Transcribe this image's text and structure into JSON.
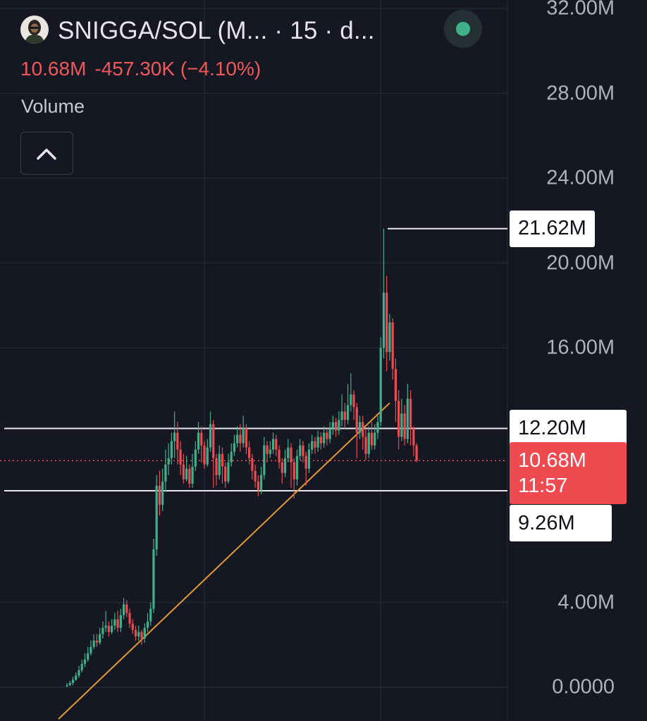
{
  "header": {
    "pair_title": "SNIGGA/SOL (M...   · 15 · d...",
    "price": "10.68M",
    "change": "-457.30K (−4.10%)",
    "volume_label": "Volume"
  },
  "colors": {
    "background": "#151822",
    "up": "#3fb08a",
    "down": "#ee4a50",
    "trendline": "#e39a35",
    "level": "#e6e7ea",
    "status": "#3fb08a"
  },
  "icons": {
    "avatar": "avatar-icon",
    "status": "live-status-icon",
    "collapse": "chevron-up-icon"
  },
  "chart_data": {
    "type": "candlestick",
    "ylim": [
      -2000000,
      33000000
    ],
    "y_ticks": [
      {
        "value": 32000000,
        "label": "32.00M"
      },
      {
        "value": 28000000,
        "label": "28.00M"
      },
      {
        "value": 24000000,
        "label": "24.00M"
      },
      {
        "value": 20000000,
        "label": "20.00M"
      },
      {
        "value": 16000000,
        "label": "16.00M"
      },
      {
        "value": 4000000,
        "label": "4.00M"
      },
      {
        "value": 0,
        "label": "0.0000"
      }
    ],
    "levels": [
      {
        "value": 21620000,
        "label": "21.62M",
        "style": "solid-short"
      },
      {
        "value": 12200000,
        "label": "12.20M",
        "style": "solid"
      },
      {
        "value": 9260000,
        "label": "9.26M",
        "style": "solid"
      }
    ],
    "current_price": {
      "value": 10680000,
      "label": "10.68M",
      "countdown": "11:57"
    },
    "trendline": {
      "start": [
        0,
        -1500000
      ],
      "end": [
        108,
        13400000
      ]
    },
    "candles": [
      [
        0.05,
        0.1,
        0.0,
        0.2
      ],
      [
        0.1,
        0.2,
        0.05,
        0.3
      ],
      [
        0.2,
        0.35,
        0.1,
        0.5
      ],
      [
        0.35,
        0.55,
        0.3,
        0.7
      ],
      [
        0.55,
        0.8,
        0.45,
        1.0
      ],
      [
        0.8,
        1.1,
        0.7,
        1.3
      ],
      [
        1.1,
        1.3,
        0.95,
        1.6
      ],
      [
        1.3,
        1.6,
        1.2,
        1.9
      ],
      [
        1.6,
        1.9,
        1.5,
        2.2
      ],
      [
        1.9,
        2.2,
        1.8,
        2.5
      ],
      [
        2.2,
        2.1,
        1.9,
        2.5
      ],
      [
        2.1,
        2.5,
        2.0,
        2.8
      ],
      [
        2.5,
        2.8,
        2.3,
        3.1
      ],
      [
        2.8,
        2.9,
        2.6,
        3.6
      ],
      [
        2.9,
        2.6,
        2.4,
        3.1
      ],
      [
        2.6,
        2.9,
        2.5,
        3.2
      ],
      [
        2.9,
        3.2,
        2.7,
        3.5
      ],
      [
        3.2,
        2.8,
        2.6,
        3.6
      ],
      [
        2.8,
        3.4,
        2.6,
        3.7
      ],
      [
        3.4,
        3.9,
        3.2,
        4.2
      ],
      [
        3.9,
        3.5,
        3.3,
        4.1
      ],
      [
        3.5,
        3.0,
        2.8,
        3.7
      ],
      [
        3.0,
        2.7,
        2.5,
        3.2
      ],
      [
        2.7,
        2.4,
        2.2,
        2.9
      ],
      [
        2.4,
        2.6,
        2.2,
        2.9
      ],
      [
        2.6,
        2.3,
        2.0,
        2.7
      ],
      [
        2.3,
        2.8,
        2.1,
        3.0
      ],
      [
        2.8,
        3.1,
        2.6,
        3.5
      ],
      [
        3.1,
        3.7,
        2.9,
        4.0
      ],
      [
        3.7,
        6.5,
        3.5,
        7.0
      ],
      [
        6.5,
        9.5,
        6.2,
        10.0
      ],
      [
        9.5,
        8.6,
        8.1,
        10.2
      ],
      [
        8.6,
        9.7,
        8.3,
        10.3
      ],
      [
        9.7,
        10.5,
        9.2,
        11.2
      ],
      [
        10.5,
        10.8,
        10.0,
        11.5
      ],
      [
        10.8,
        11.6,
        10.5,
        12.0
      ],
      [
        11.6,
        12.0,
        10.8,
        13.0
      ],
      [
        12.0,
        11.2,
        10.5,
        12.5
      ],
      [
        11.2,
        10.5,
        10.0,
        11.6
      ],
      [
        10.5,
        9.8,
        9.6,
        11.0
      ],
      [
        9.8,
        10.3,
        9.7,
        10.9
      ],
      [
        10.3,
        9.6,
        9.4,
        10.5
      ],
      [
        9.6,
        10.4,
        9.4,
        11.0
      ],
      [
        10.4,
        11.2,
        10.2,
        11.6
      ],
      [
        11.2,
        12.0,
        11.0,
        12.5
      ],
      [
        12.0,
        11.4,
        10.6,
        12.3
      ],
      [
        11.4,
        10.5,
        10.3,
        11.6
      ],
      [
        10.5,
        11.3,
        10.4,
        11.7
      ],
      [
        11.3,
        12.4,
        11.1,
        13.0
      ],
      [
        12.4,
        10.8,
        9.4,
        12.6
      ],
      [
        10.8,
        10.0,
        9.5,
        11.0
      ],
      [
        10.0,
        11.0,
        9.8,
        11.4
      ],
      [
        11.0,
        10.4,
        9.6,
        11.3
      ],
      [
        10.4,
        9.7,
        9.4,
        10.6
      ],
      [
        9.7,
        10.6,
        9.6,
        11.0
      ],
      [
        10.6,
        11.1,
        10.4,
        11.5
      ],
      [
        11.1,
        11.5,
        10.9,
        11.9
      ],
      [
        11.5,
        11.9,
        11.3,
        12.3
      ],
      [
        11.9,
        11.5,
        11.1,
        12.4
      ],
      [
        11.5,
        12.2,
        11.3,
        12.8
      ],
      [
        12.2,
        11.3,
        11.0,
        12.4
      ],
      [
        11.3,
        10.8,
        10.5,
        11.6
      ],
      [
        10.8,
        10.2,
        9.8,
        11.0
      ],
      [
        10.2,
        9.7,
        9.4,
        10.5
      ],
      [
        9.7,
        9.3,
        9.0,
        10.0
      ],
      [
        9.3,
        10.0,
        9.1,
        10.4
      ],
      [
        10.0,
        11.4,
        9.8,
        11.8
      ],
      [
        11.4,
        11.0,
        10.6,
        11.6
      ],
      [
        11.0,
        11.2,
        10.8,
        11.6
      ],
      [
        11.2,
        11.7,
        11.0,
        12.0
      ],
      [
        11.7,
        11.2,
        10.9,
        11.9
      ],
      [
        11.2,
        10.6,
        10.3,
        11.4
      ],
      [
        10.6,
        10.1,
        9.6,
        10.8
      ],
      [
        10.1,
        10.8,
        9.9,
        11.2
      ],
      [
        10.8,
        11.3,
        10.6,
        11.7
      ],
      [
        11.3,
        10.6,
        9.4,
        11.5
      ],
      [
        10.6,
        9.8,
        8.9,
        10.8
      ],
      [
        9.8,
        10.9,
        9.5,
        11.2
      ],
      [
        10.9,
        11.4,
        10.7,
        11.7
      ],
      [
        11.4,
        10.9,
        10.6,
        11.6
      ],
      [
        10.9,
        10.3,
        9.5,
        11.1
      ],
      [
        10.3,
        11.2,
        10.1,
        11.5
      ],
      [
        11.2,
        11.6,
        11.0,
        11.9
      ],
      [
        11.6,
        11.3,
        11.0,
        11.8
      ],
      [
        11.3,
        11.8,
        11.1,
        12.1
      ],
      [
        11.8,
        11.5,
        11.2,
        12.0
      ],
      [
        11.5,
        12.0,
        11.3,
        12.3
      ],
      [
        12.0,
        11.7,
        11.4,
        12.2
      ],
      [
        11.7,
        12.2,
        11.5,
        12.5
      ],
      [
        12.2,
        12.5,
        11.9,
        12.8
      ],
      [
        12.5,
        12.1,
        11.8,
        12.7
      ],
      [
        12.1,
        12.6,
        11.9,
        13.0
      ],
      [
        12.6,
        13.0,
        12.3,
        13.8
      ],
      [
        13.0,
        12.6,
        12.2,
        13.4
      ],
      [
        12.6,
        13.3,
        12.4,
        14.3
      ],
      [
        13.3,
        13.8,
        13.0,
        14.8
      ],
      [
        13.8,
        13.2,
        12.6,
        14.0
      ],
      [
        13.2,
        12.0,
        10.8,
        13.4
      ],
      [
        12.0,
        12.5,
        11.7,
        12.8
      ],
      [
        12.5,
        11.8,
        11.2,
        12.8
      ],
      [
        11.8,
        11.0,
        10.7,
        12.2
      ],
      [
        11.0,
        12.0,
        10.8,
        12.3
      ],
      [
        12.0,
        11.4,
        11.2,
        12.5
      ],
      [
        11.4,
        12.0,
        11.2,
        12.4
      ],
      [
        12.0,
        12.5,
        11.7,
        12.8
      ],
      [
        12.5,
        16.0,
        12.3,
        16.5
      ],
      [
        16.0,
        18.6,
        15.5,
        21.62
      ],
      [
        18.6,
        15.8,
        14.9,
        19.4
      ],
      [
        15.8,
        17.2,
        15.4,
        17.6
      ],
      [
        17.2,
        15.0,
        14.5,
        17.4
      ],
      [
        15.0,
        13.5,
        12.5,
        15.5
      ],
      [
        13.5,
        11.8,
        11.2,
        14.0
      ],
      [
        11.8,
        12.9,
        11.6,
        13.6
      ],
      [
        12.9,
        11.7,
        11.4,
        13.3
      ],
      [
        11.7,
        13.6,
        11.5,
        14.3
      ],
      [
        13.6,
        12.2,
        11.4,
        14.0
      ],
      [
        12.2,
        11.4,
        10.9,
        12.3
      ],
      [
        11.4,
        10.68,
        10.6,
        11.5
      ]
    ]
  }
}
